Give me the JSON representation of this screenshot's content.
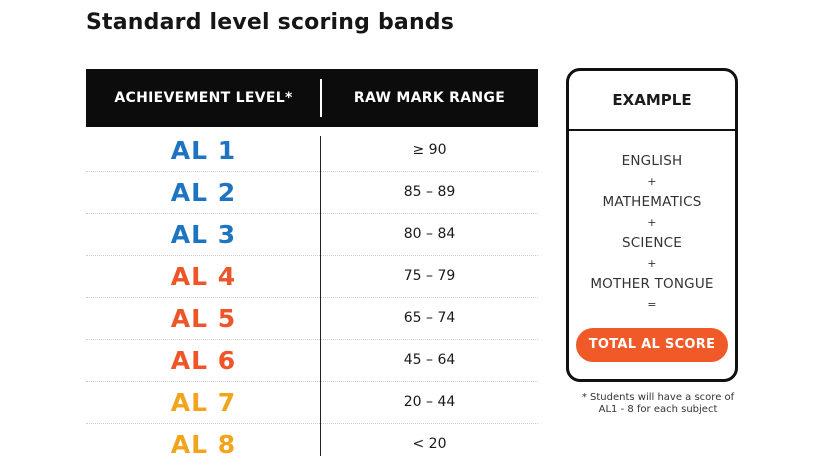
{
  "title": "Standard level scoring bands",
  "table": {
    "headers": {
      "level": "ACHIEVEMENT LEVEL*",
      "range": "RAW MARK RANGE"
    },
    "rows": [
      {
        "level": "AL 1",
        "range": "≥ 90",
        "color": "#1f74c2"
      },
      {
        "level": "AL 2",
        "range": "85 – 89",
        "color": "#1f74c2"
      },
      {
        "level": "AL 3",
        "range": "80 – 84",
        "color": "#1f74c2"
      },
      {
        "level": "AL 4",
        "range": "75 – 79",
        "color": "#ee5529"
      },
      {
        "level": "AL 5",
        "range": "65 – 74",
        "color": "#ee5529"
      },
      {
        "level": "AL 6",
        "range": "45 – 64",
        "color": "#ee5529"
      },
      {
        "level": "AL 7",
        "range": "20 – 44",
        "color": "#f2a51c"
      },
      {
        "level": "AL 8",
        "range": "< 20",
        "color": "#f2a51c"
      }
    ]
  },
  "example": {
    "heading": "EXAMPLE",
    "subjects": [
      "ENGLISH",
      "MATHEMATICS",
      "SCIENCE",
      "MOTHER TONGUE"
    ],
    "plus": "+",
    "equals": "=",
    "total_label": "TOTAL AL SCORE",
    "total_color": "#f05a28"
  },
  "note": "* Students will have a score of AL1 - 8 for each subject"
}
